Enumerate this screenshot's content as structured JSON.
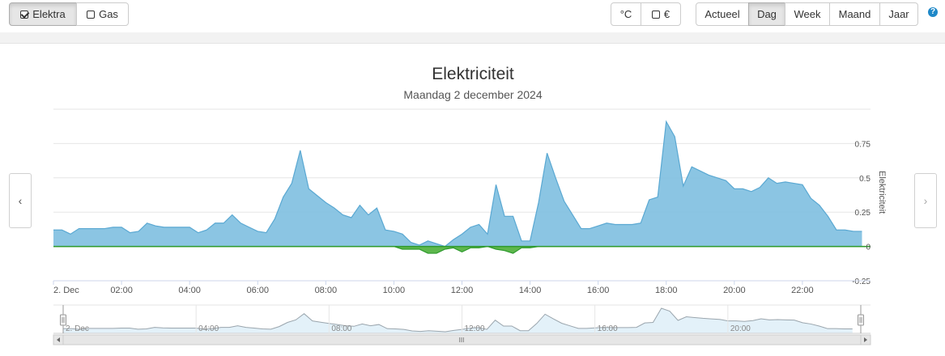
{
  "toolbar": {
    "elektra_label": "Elektra",
    "gas_label": "Gas",
    "celsius_label": "°C",
    "euro_label": "€",
    "periods": [
      "Actueel",
      "Dag",
      "Week",
      "Maand",
      "Jaar"
    ],
    "active_period": "Dag",
    "help_label": "?"
  },
  "nav": {
    "prev_label": "‹",
    "next_label": "›"
  },
  "chart_data": {
    "type": "area",
    "title": "Elektriciteit",
    "subtitle": "Maandag 2 december 2024",
    "ylabel": "Elektriciteit",
    "ylim": [
      -0.25,
      1.0
    ],
    "yticks": [
      -0.25,
      0,
      0.25,
      0.5,
      0.75
    ],
    "ytick_labels": [
      "-0.25",
      "0",
      "0.25",
      "0.5",
      "0.75"
    ],
    "xlim": [
      0,
      24
    ],
    "xticks": [
      0,
      2,
      4,
      6,
      8,
      10,
      12,
      14,
      16,
      18,
      20,
      22
    ],
    "xtick_labels": [
      "2. Dec",
      "02:00",
      "04:00",
      "06:00",
      "08:00",
      "10:00",
      "12:00",
      "14:00",
      "16:00",
      "18:00",
      "20:00",
      "22:00"
    ],
    "grid": true,
    "legend": "none",
    "colors": {
      "positive": "#7ebfe0",
      "positive_line": "#5aa8d2",
      "negative": "#4caf3a",
      "negative_line": "#2e9a2e"
    },
    "series": [
      {
        "x": [
          0,
          0.25,
          0.5,
          0.75,
          1,
          1.25,
          1.5,
          1.75,
          2,
          2.25,
          2.5,
          2.75,
          3,
          3.25,
          3.5,
          3.75,
          4,
          4.25,
          4.5,
          4.75,
          5,
          5.25,
          5.5,
          5.75,
          6,
          6.25,
          6.5,
          6.75,
          7,
          7.25,
          7.5,
          7.75,
          8,
          8.25,
          8.5,
          8.75,
          9,
          9.25,
          9.5,
          9.75,
          10,
          10.25,
          10.5,
          10.75,
          11,
          11.25,
          11.5,
          11.75,
          12,
          12.25,
          12.5,
          12.75,
          13,
          13.25,
          13.5,
          13.75,
          14,
          14.25,
          14.5,
          14.75,
          15,
          15.25,
          15.5,
          15.75,
          16,
          16.25,
          16.5,
          16.75,
          17,
          17.25,
          17.5,
          17.75,
          18,
          18.25,
          18.5,
          18.75,
          19,
          19.25,
          19.5,
          19.75,
          20,
          20.25,
          20.5,
          20.75,
          21,
          21.25,
          21.5,
          21.75,
          22,
          22.25,
          22.5,
          22.75,
          23,
          23.25,
          23.5,
          23.75
        ],
        "values": [
          0.12,
          0.12,
          0.09,
          0.13,
          0.13,
          0.13,
          0.13,
          0.14,
          0.14,
          0.1,
          0.11,
          0.17,
          0.15,
          0.14,
          0.14,
          0.14,
          0.14,
          0.1,
          0.12,
          0.17,
          0.17,
          0.23,
          0.17,
          0.14,
          0.11,
          0.1,
          0.2,
          0.36,
          0.46,
          0.7,
          0.42,
          0.37,
          0.32,
          0.28,
          0.23,
          0.21,
          0.3,
          0.23,
          0.28,
          0.12,
          0.11,
          0.09,
          0.03,
          0.01,
          0.04,
          0.02,
          0.0,
          0.05,
          0.09,
          0.14,
          0.16,
          0.09,
          0.45,
          0.22,
          0.22,
          0.04,
          0.04,
          0.32,
          0.68,
          0.5,
          0.33,
          0.23,
          0.13,
          0.13,
          0.15,
          0.17,
          0.16,
          0.16,
          0.16,
          0.17,
          0.34,
          0.36,
          0.91,
          0.8,
          0.44,
          0.58,
          0.55,
          0.52,
          0.5,
          0.48,
          0.42,
          0.42,
          0.4,
          0.43,
          0.5,
          0.46,
          0.47,
          0.46,
          0.45,
          0.35,
          0.3,
          0.22,
          0.12,
          0.12,
          0.11,
          0.11
        ]
      },
      {
        "x": [
          0,
          10,
          10.25,
          10.5,
          10.75,
          11,
          11.25,
          11.5,
          11.75,
          12,
          12.25,
          12.5,
          12.75,
          13,
          13.25,
          13.5,
          13.75,
          14,
          14.25,
          24
        ],
        "values": [
          0,
          0,
          -0.02,
          -0.02,
          -0.02,
          -0.05,
          -0.05,
          -0.02,
          -0.01,
          -0.04,
          -0.01,
          -0.01,
          0,
          -0.02,
          -0.03,
          -0.05,
          -0.01,
          -0.01,
          0,
          0
        ]
      }
    ],
    "navigator": {
      "xtick_labels": [
        "2. Dec",
        "04:00",
        "08:00",
        "12:00",
        "16:00",
        "20:00"
      ],
      "xticks": [
        0,
        4,
        8,
        12,
        16,
        20
      ],
      "scrollbar_grip": "III"
    }
  }
}
